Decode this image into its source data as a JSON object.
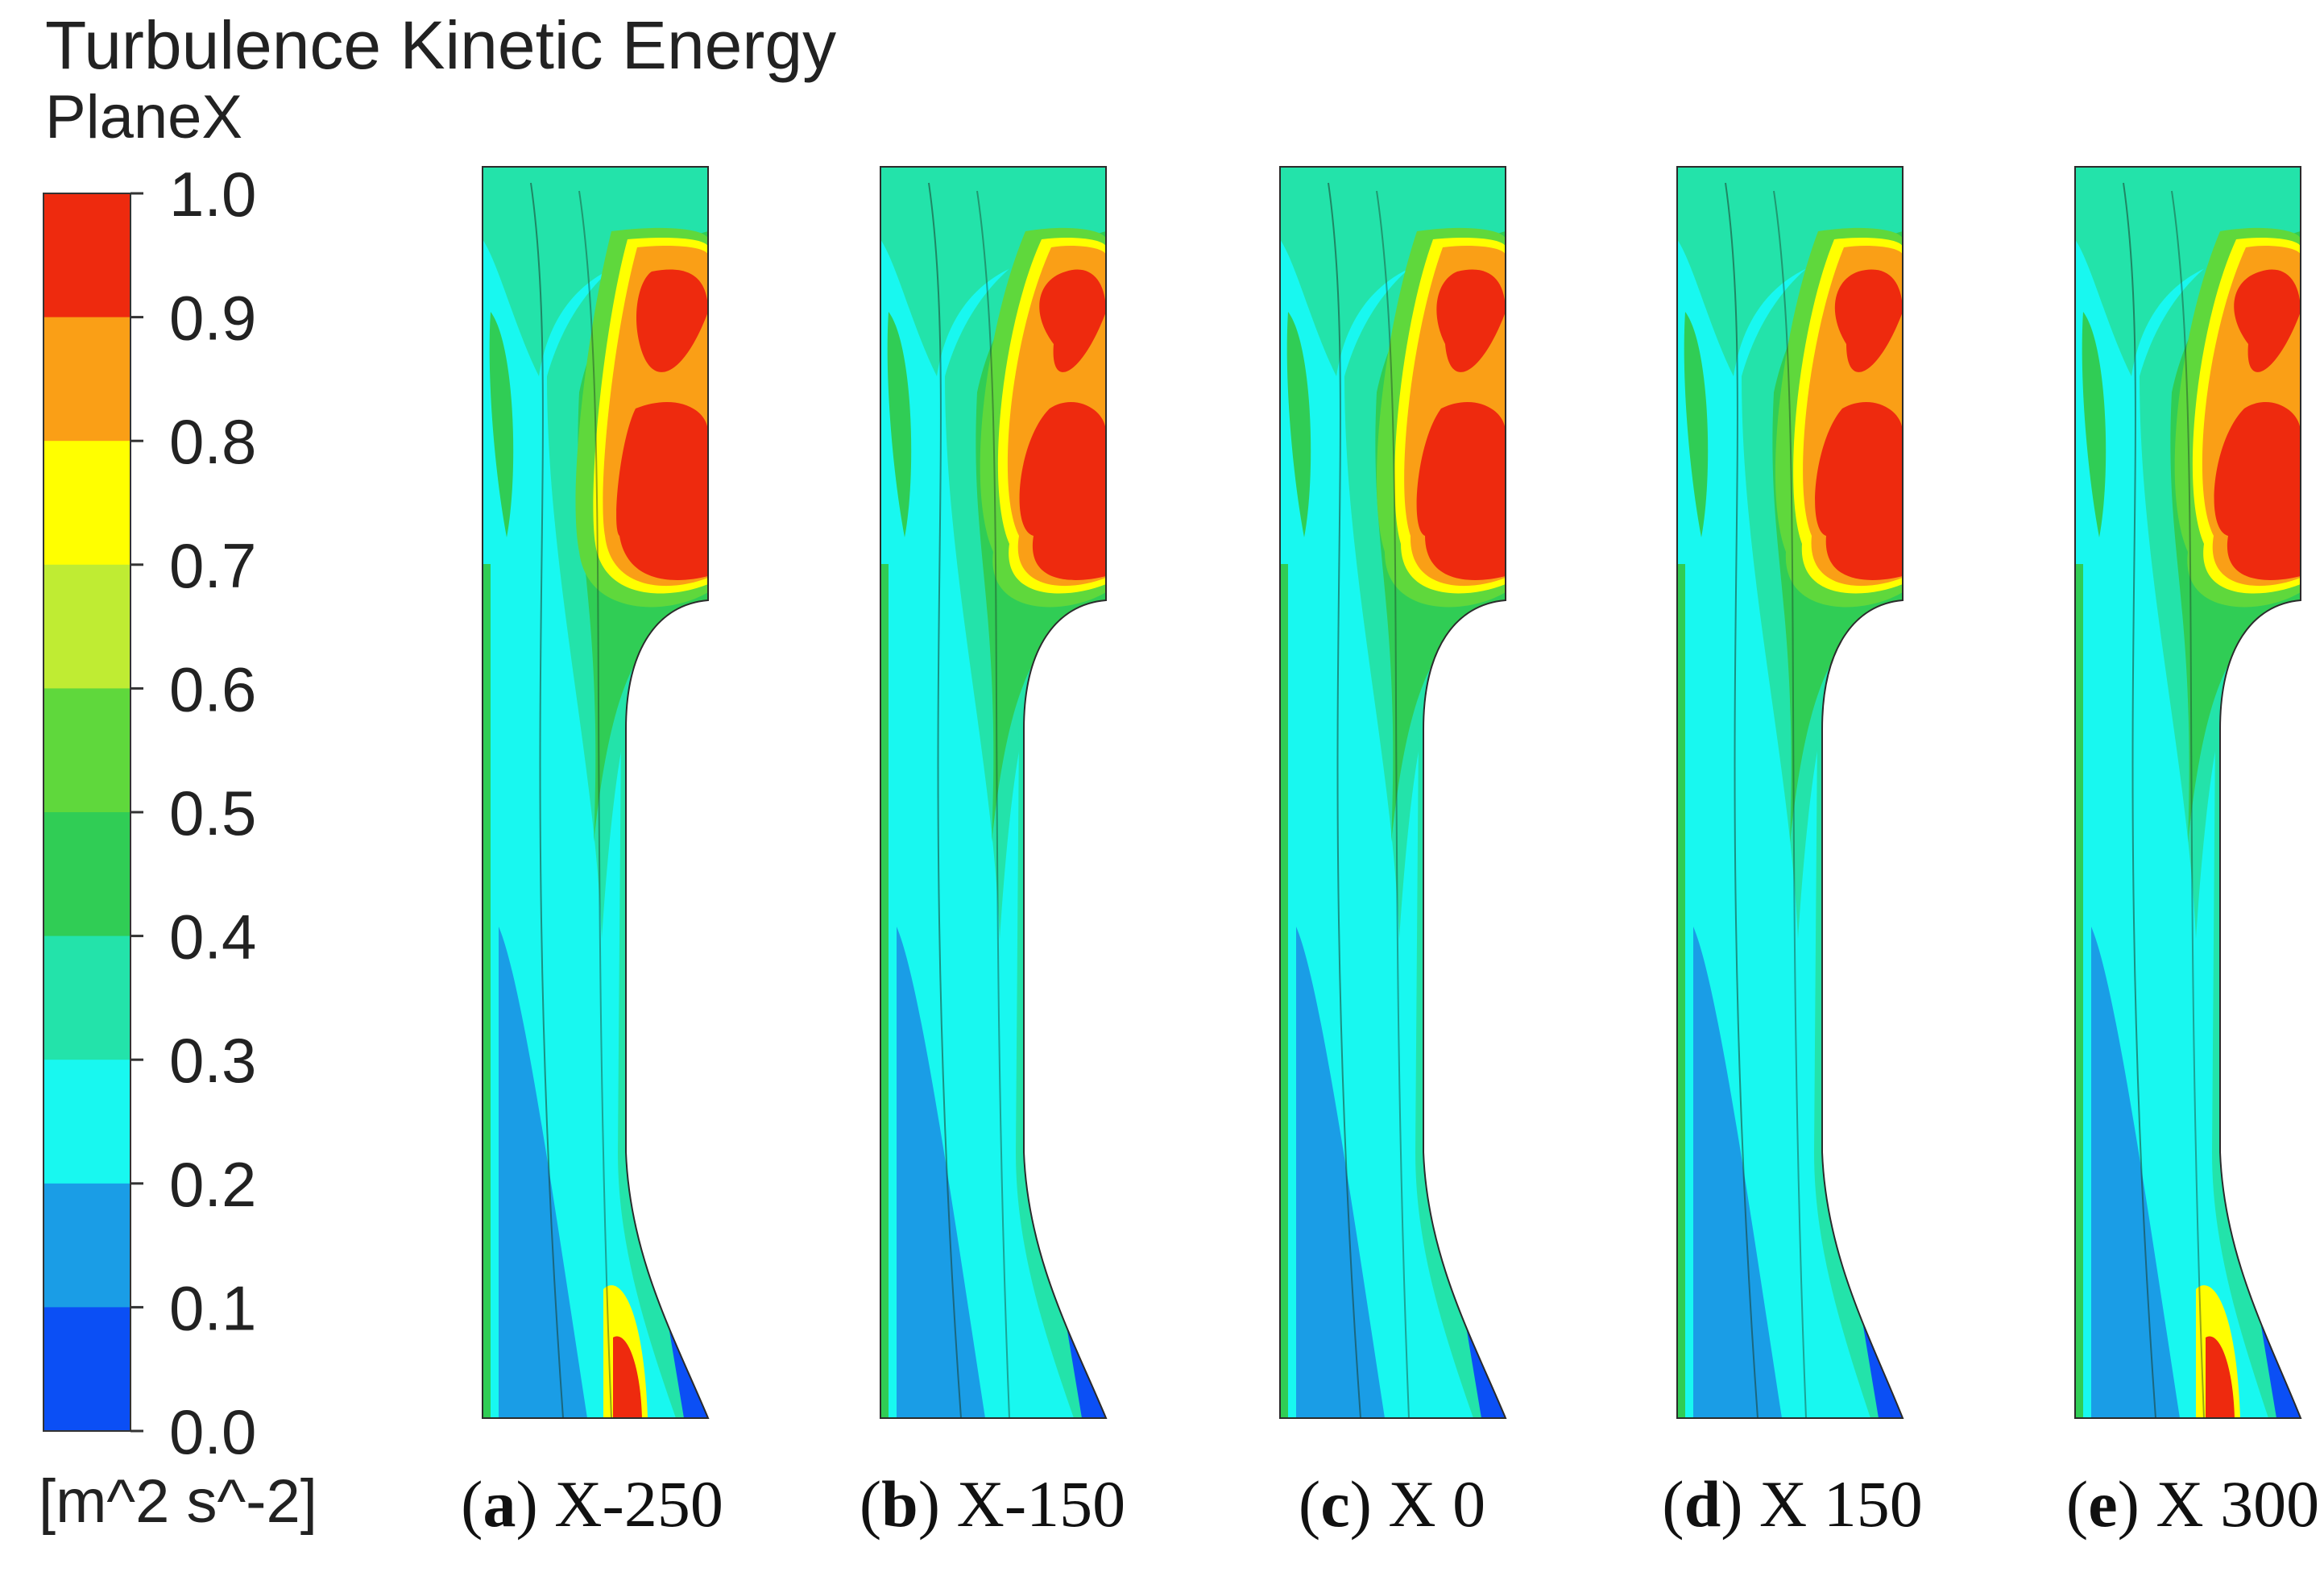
{
  "title": "Turbulence Kinetic Energy",
  "subtitle": "PlaneX",
  "colorbar": {
    "ticks": [
      "1.0",
      "0.9",
      "0.8",
      "0.7",
      "0.6",
      "0.5",
      "0.4",
      "0.3",
      "0.2",
      "0.1",
      "0.0"
    ],
    "colors_top_to_bottom": [
      "#ee2a0e",
      "#fa9f16",
      "#ffff00",
      "#bfec33",
      "#5fd83c",
      "#30cd55",
      "#23e3aa",
      "#18f8f0",
      "#1a9de6",
      "#0b4ff5"
    ],
    "unit": "[m^2 s^-2]"
  },
  "panels": [
    {
      "letter": "a",
      "label": "X-250"
    },
    {
      "letter": "b",
      "label": "X-150"
    },
    {
      "letter": "c",
      "label": "X 0"
    },
    {
      "letter": "d",
      "label": "X 150"
    },
    {
      "letter": "e",
      "label": "X 300"
    }
  ]
}
